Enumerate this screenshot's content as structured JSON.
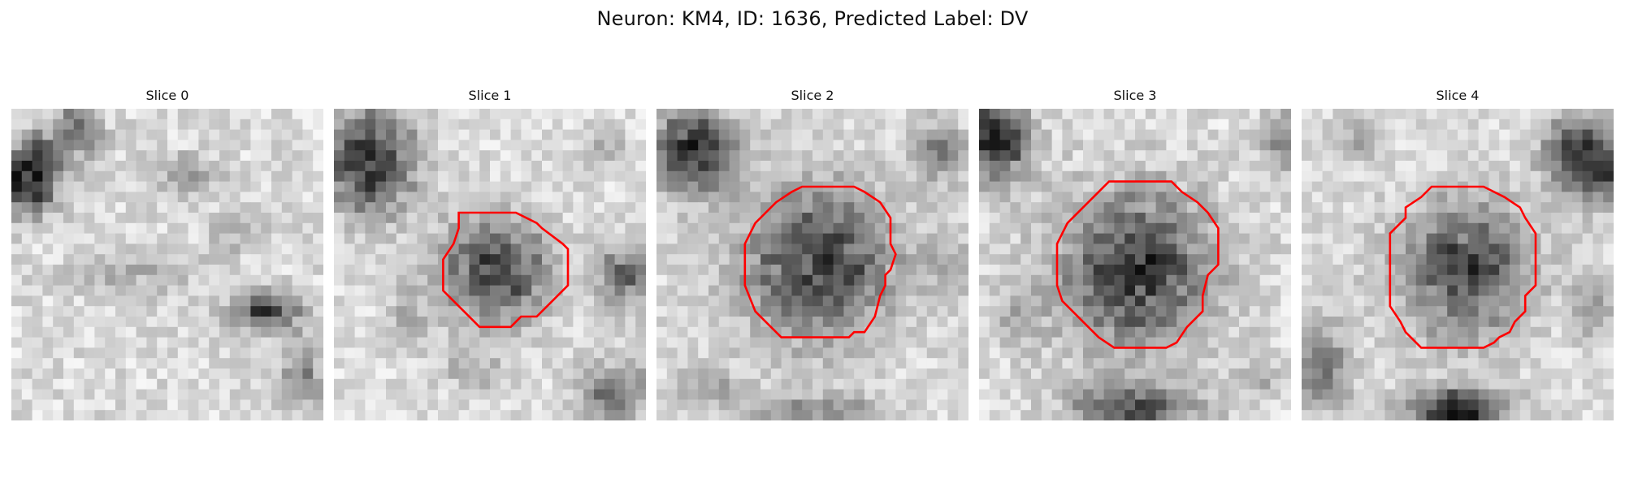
{
  "figure": {
    "title": "Neuron: KM4, ID: 1636, Predicted Label: DV"
  },
  "panels": [
    {
      "title": "Slice 0",
      "image_description": "grayscale microscopy patch, dark blob at left edge, darker band at lower right, no contour",
      "contour": false,
      "contour_color": "#ff0000"
    },
    {
      "title": "Slice 1",
      "image_description": "grayscale microscopy patch with small dark cell body in center, dark region at top-left, red contour around cell",
      "contour": true,
      "contour_color": "#ff0000"
    },
    {
      "title": "Slice 2",
      "image_description": "grayscale microscopy patch with larger dark cell body in center, dark region at top-left, red contour around cell",
      "contour": true,
      "contour_color": "#ff0000"
    },
    {
      "title": "Slice 3",
      "image_description": "grayscale microscopy patch with large dark cell body in center, dark region at top-left and bottom, red contour around cell",
      "contour": true,
      "contour_color": "#ff0000"
    },
    {
      "title": "Slice 4",
      "image_description": "grayscale microscopy patch with medium dark cell body in center, dark region at top-right and bottom, red contour around cell",
      "contour": true,
      "contour_color": "#ff0000"
    }
  ]
}
